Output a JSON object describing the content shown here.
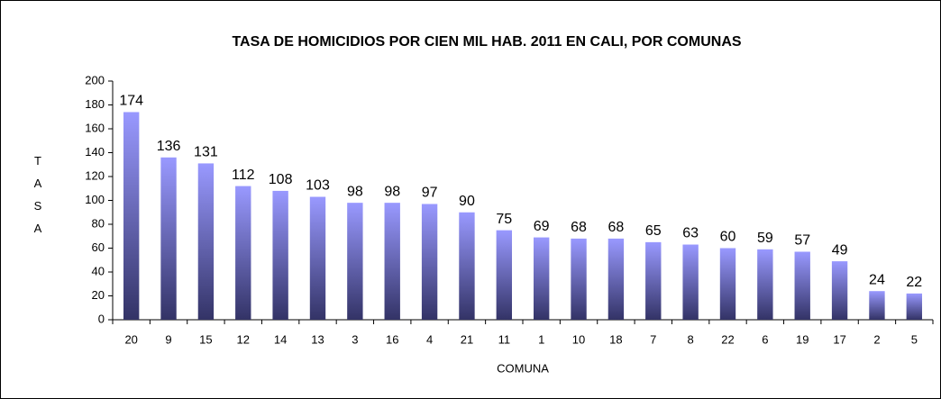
{
  "chart_data": {
    "type": "bar",
    "title": "TASA DE HOMICIDIOS POR CIEN MIL HAB. 2011 EN CALI, POR COMUNAS",
    "x_label": "COMUNA",
    "y_label": "TASA",
    "categories": [
      "20",
      "9",
      "15",
      "12",
      "14",
      "13",
      "3",
      "16",
      "4",
      "21",
      "11",
      "1",
      "10",
      "18",
      "7",
      "8",
      "22",
      "6",
      "19",
      "17",
      "2",
      "5"
    ],
    "values": [
      174,
      136,
      131,
      112,
      108,
      103,
      98,
      98,
      97,
      90,
      75,
      69,
      68,
      68,
      65,
      63,
      60,
      59,
      57,
      49,
      24,
      22
    ],
    "color_top": "#9999ff",
    "color_bottom": "#333366",
    "ylim": [
      0,
      200
    ],
    "yticks": [
      0,
      20,
      40,
      60,
      80,
      100,
      120,
      140,
      160,
      180,
      200
    ],
    "grid": false
  }
}
